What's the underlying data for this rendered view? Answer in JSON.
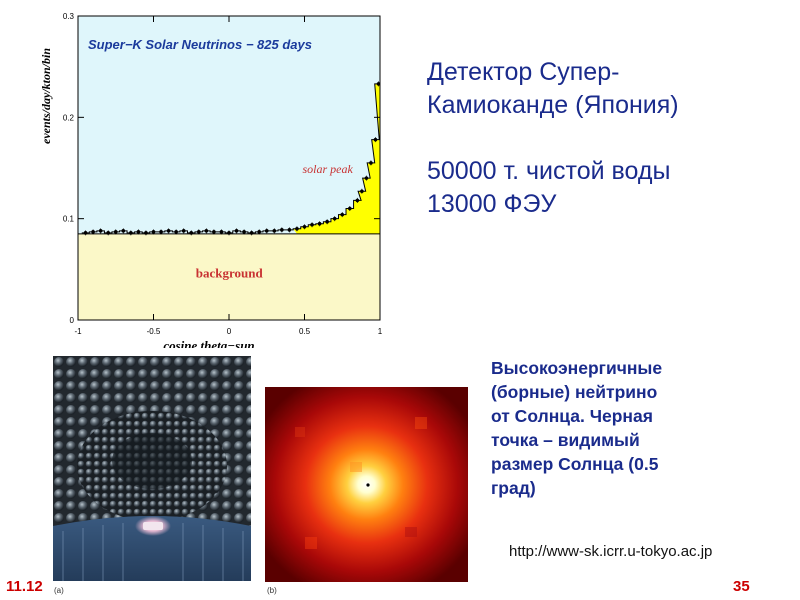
{
  "slide": {
    "heading": {
      "line1": "Детектор Супер-",
      "line2": "Камиоканде (Япония)",
      "line3": "50000 т. чистой воды",
      "line4": "13000 ФЭУ"
    },
    "caption": {
      "line1": "Высокоэнергичные",
      "line2": "(борные) нейтрино",
      "line3": "от Солнца. Черная",
      "line4": "точка – видимый",
      "line5": "размер Солнца (0.5",
      "line6": "град)"
    },
    "url": "http://www-sk.icrr.u-tokyo.ac.jp",
    "date": "11.12",
    "page_number": "35",
    "photo_a_label": "(a)",
    "photo_b_label": "(b)"
  },
  "chart_data": {
    "type": "line",
    "title": "Super−K Solar Neutrinos − 825 days",
    "xlabel": "cosine theta−sun",
    "ylabel": "events/day/kton/bin",
    "xlim": [
      -1,
      1
    ],
    "ylim": [
      0,
      0.3
    ],
    "xticks": [
      "-1",
      "-0.5",
      "0",
      "0.5",
      "1"
    ],
    "yticks": [
      "0",
      "0.1",
      "0.2",
      "0.3"
    ],
    "annotations": {
      "peak": "solar peak",
      "background": "background"
    },
    "background_level": 0.085,
    "series": [
      {
        "x": [
          -0.95,
          -0.9,
          -0.85,
          -0.8,
          -0.75,
          -0.7,
          -0.65,
          -0.6,
          -0.55,
          -0.5,
          -0.45,
          -0.4,
          -0.35,
          -0.3,
          -0.25,
          -0.2,
          -0.15,
          -0.1,
          -0.05,
          0,
          0.05,
          0.1,
          0.15,
          0.2,
          0.25,
          0.3,
          0.35,
          0.4,
          0.45,
          0.5,
          0.55,
          0.6,
          0.65,
          0.7,
          0.75,
          0.8,
          0.85,
          0.88,
          0.91,
          0.94,
          0.97,
          0.99
        ],
        "y": [
          0.086,
          0.087,
          0.088,
          0.086,
          0.087,
          0.088,
          0.086,
          0.087,
          0.086,
          0.087,
          0.087,
          0.088,
          0.087,
          0.088,
          0.086,
          0.087,
          0.088,
          0.087,
          0.087,
          0.086,
          0.088,
          0.087,
          0.086,
          0.087,
          0.088,
          0.088,
          0.089,
          0.089,
          0.09,
          0.092,
          0.094,
          0.095,
          0.097,
          0.1,
          0.104,
          0.11,
          0.118,
          0.127,
          0.14,
          0.155,
          0.178,
          0.233
        ]
      }
    ],
    "colors": {
      "plot_top": "#dff6fb",
      "plot_bottom": "#fbf8c8",
      "peak_fill": "#ffff00",
      "annotation": "#c83232",
      "title": "#1a3a9c"
    }
  }
}
